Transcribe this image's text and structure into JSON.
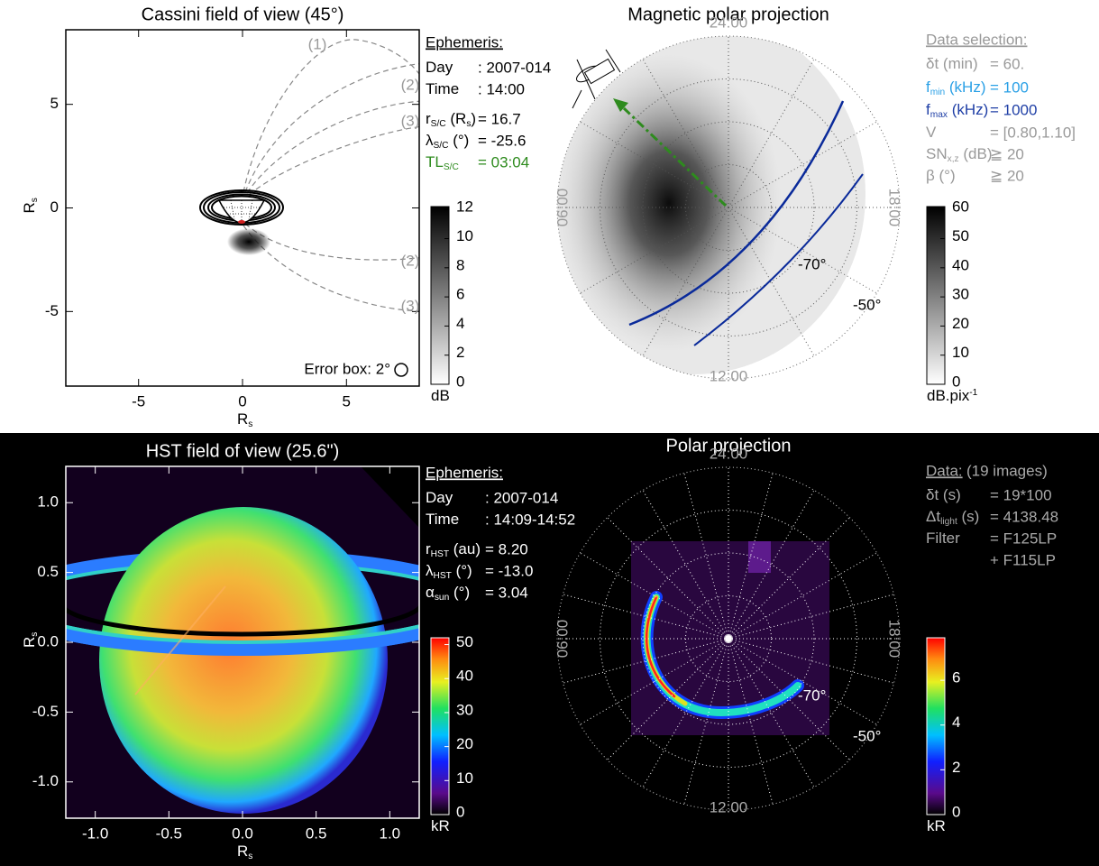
{
  "cassini_view": {
    "title": "Cassini field of view (45°)",
    "xlabel": [
      "R",
      "s"
    ],
    "ylabel": [
      "R",
      "s"
    ],
    "xlim": [
      -8.5,
      8.5
    ],
    "ylim": [
      -8.6,
      8.6
    ],
    "xticks": [
      -5,
      0,
      5
    ],
    "yticks": [
      -5,
      0,
      5
    ],
    "field_line_labels": [
      "(1)",
      "(2)",
      "(3)",
      "(2)",
      "(3)"
    ],
    "error_box": "Error box: 2°",
    "colorbar": {
      "lim": [
        0,
        12.2
      ],
      "ticks": [
        0,
        2,
        4,
        6,
        8,
        10,
        12
      ],
      "label": "dB"
    }
  },
  "cassini_ephemeris": {
    "header": "Ephemeris:",
    "lines": [
      {
        "label": [
          "Day"
        ],
        "value": ": 2007-014"
      },
      {
        "label": [
          "Time"
        ],
        "value": ": 14:00"
      },
      {
        "label": [
          "r",
          "S/C",
          " (R",
          "s",
          ")"
        ],
        "value": "= 16.7"
      },
      {
        "label": [
          "λ",
          "S/C",
          " (°)"
        ],
        "value": "= -25.6"
      },
      {
        "label": [
          "TL",
          "S/C"
        ],
        "value": "= 03:04",
        "color": "#2e8b1e"
      }
    ]
  },
  "magnetic_projection": {
    "title": "Magnetic polar projection",
    "local_times": [
      "24:00",
      "06:00",
      "12:00",
      "18:00"
    ],
    "latitudes": [
      "-70°",
      "-50°"
    ],
    "colorbar": {
      "lim": [
        0,
        61
      ],
      "ticks": [
        0,
        10,
        20,
        30,
        40,
        50,
        60
      ],
      "label": "dB.pix",
      "label_sup": "-1"
    }
  },
  "data_selection": {
    "header": "Data selection:",
    "lines": [
      {
        "label": [
          "δt (min)"
        ],
        "value": "= 60."
      },
      {
        "label": [
          "f",
          "min",
          " (kHz)"
        ],
        "value": "= 100",
        "color": "#2aa0e6"
      },
      {
        "label": [
          "f",
          "max",
          " (kHz)"
        ],
        "value": "= 1000",
        "color": "#1f3fa6"
      },
      {
        "label": [
          "V"
        ],
        "value": "= [0.80,1.10]"
      },
      {
        "label": [
          "SN",
          "x,z",
          " (dB)"
        ],
        "value": "≧ 20"
      },
      {
        "label": [
          "β (°)"
        ],
        "value": "≧ 20"
      }
    ]
  },
  "hst_view": {
    "title": "HST field of view (25.6\")",
    "xlabel": [
      "R",
      "s"
    ],
    "ylabel": [
      "R",
      "s"
    ],
    "xlim": [
      -1.2,
      1.2
    ],
    "ylim": [
      -1.26,
      1.26
    ],
    "xticks": [
      {
        "value": -1,
        "label": "-1.0"
      },
      {
        "value": -0.5,
        "label": "-0.5"
      },
      {
        "value": 0,
        "label": "0.0"
      },
      {
        "value": 0.5,
        "label": "0.5"
      },
      {
        "value": 1,
        "label": "1.0"
      }
    ],
    "yticks": [
      {
        "value": 1,
        "label": "1.0"
      },
      {
        "value": 0.5,
        "label": "0.5"
      },
      {
        "value": 0,
        "label": "0.0"
      },
      {
        "value": -0.5,
        "label": "-0.5"
      },
      {
        "value": -1,
        "label": "-1.0"
      }
    ],
    "colorbar": {
      "lim": [
        0,
        52
      ],
      "ticks": [
        0,
        10,
        20,
        30,
        40,
        50
      ],
      "label": "kR"
    }
  },
  "hst_ephemeris": {
    "header": "Ephemeris:",
    "lines": [
      {
        "label": [
          "Day"
        ],
        "value": ": 2007-014"
      },
      {
        "label": [
          "Time"
        ],
        "value": ": 14:09-14:52"
      },
      {
        "label": [
          "r",
          "HST",
          " (au)"
        ],
        "value": "= 8.20"
      },
      {
        "label": [
          "λ",
          "HST",
          " (°)"
        ],
        "value": "= -13.0"
      },
      {
        "label": [
          "α",
          "sun",
          " (°)"
        ],
        "value": "= 3.04"
      }
    ]
  },
  "polar_projection": {
    "title": "Polar projection",
    "local_times": [
      "24:00",
      "06:00",
      "12:00",
      "18:00"
    ],
    "latitudes": [
      "-70°",
      "-50°"
    ],
    "colorbar": {
      "lim": [
        0,
        7.9
      ],
      "ticks": [
        0,
        2,
        4,
        6
      ],
      "label": "kR"
    }
  },
  "hst_data": {
    "header": "Data:",
    "note": "(19 images)",
    "lines": [
      {
        "label": [
          "δt (s)"
        ],
        "value": "= 19*100"
      },
      {
        "label": [
          "Δt",
          "light",
          " (s)"
        ],
        "value": "= 4138.48"
      },
      {
        "label": [
          "Filter"
        ],
        "value": [
          "= F125LP",
          "+ F115LP"
        ]
      }
    ]
  }
}
